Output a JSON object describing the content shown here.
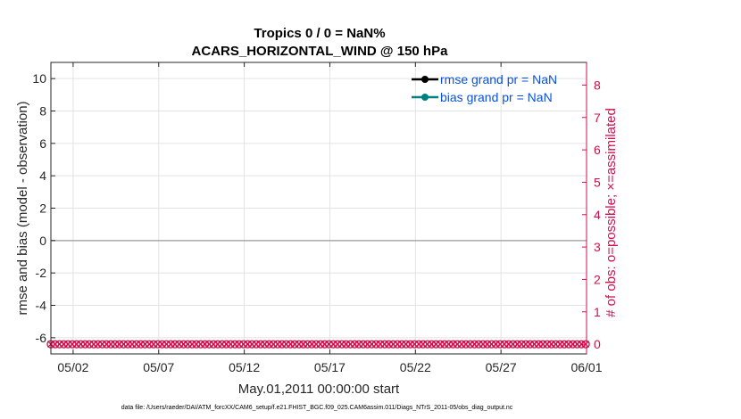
{
  "chart_data": {
    "type": "line",
    "title": [
      "Tropics 0 / 0 = NaN%",
      "ACARS_HORIZONTAL_WIND @ 150 hPa"
    ],
    "xlabel": "May.01,2011 00:00:00 start",
    "ylabel_left": "rmse and bias (model - observation)",
    "ylabel_right": "# of obs: o=possible; ×=assimilated",
    "x_ticks": [
      {
        "label": "05/02",
        "day": 2
      },
      {
        "label": "05/07",
        "day": 7
      },
      {
        "label": "05/12",
        "day": 12
      },
      {
        "label": "05/17",
        "day": 17
      },
      {
        "label": "05/22",
        "day": 22
      },
      {
        "label": "05/27",
        "day": 27
      },
      {
        "label": "06/01",
        "day": 32
      }
    ],
    "xlim_days": [
      0.7,
      32.0
    ],
    "ylim_left": [
      -7,
      11
    ],
    "y_ticks_left": [
      10,
      8,
      6,
      4,
      2,
      0,
      -2,
      -4,
      -6
    ],
    "ylim_right": [
      -0.3,
      8.7
    ],
    "y_ticks_right": [
      8,
      7,
      6,
      5,
      4,
      3,
      2,
      1,
      0
    ],
    "grid": true,
    "legend_position": "top-right",
    "series": [
      {
        "name": "rmse grand pr = NaN",
        "color": "#000000",
        "marker": "circle",
        "axis": "left",
        "values": []
      },
      {
        "name": "bias grand pr = NaN",
        "color": "#008080",
        "marker": "circle",
        "axis": "left",
        "values": []
      },
      {
        "axis": "right",
        "color": "#d0104c",
        "marker": "o",
        "y_value": 0,
        "x_start_day": 0.7,
        "x_end_day": 32.0,
        "step_days": 0.25
      },
      {
        "axis": "right",
        "color": "#d0104c",
        "marker": "x",
        "y_value": 0,
        "x_start_day": 0.7,
        "x_end_day": 32.0,
        "step_days": 0.25
      }
    ],
    "zero_line": {
      "y": 0,
      "color": "#aaaaaa"
    }
  },
  "footer": "data file: /Users/raeder/DAI/ATM_forcXX/CAM6_setup/f.e21.FHIST_BGC.f09_025.CAM6assim.011/Diags_NTrS_2011-05/obs_diag_output.nc",
  "colors": {
    "right_axis": "#d0104c",
    "legend_text": "#0b52e0",
    "grid": "#e3e3e3"
  }
}
